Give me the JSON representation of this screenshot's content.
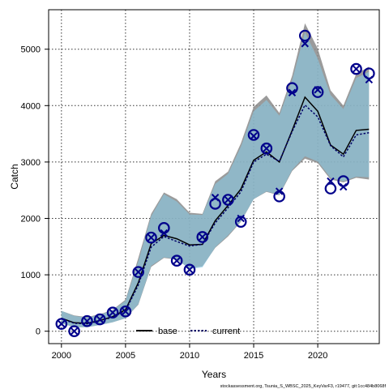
{
  "chart_data": {
    "type": "line",
    "xlabel": "Years",
    "ylabel": "Catch",
    "xlim": [
      1999,
      2024.8
    ],
    "ylim": [
      -220,
      5700
    ],
    "xticks": [
      2000,
      2005,
      2010,
      2015,
      2020
    ],
    "yticks": [
      0,
      1000,
      2000,
      3000,
      4000,
      5000
    ],
    "grid": true,
    "legend_position": "bottom-center",
    "x": [
      2000,
      2001,
      2002,
      2003,
      2004,
      2005,
      2006,
      2007,
      2008,
      2009,
      2010,
      2011,
      2012,
      2013,
      2014,
      2015,
      2016,
      2017,
      2018,
      2019,
      2020,
      2021,
      2022,
      2023,
      2024
    ],
    "observed": [
      130,
      0,
      180,
      210,
      330,
      350,
      1050,
      1660,
      1830,
      1250,
      1090,
      1670,
      2260,
      2330,
      1940,
      3480,
      3240,
      2390,
      4310,
      5240,
      4240,
      2530,
      2660,
      4650,
      4570
    ],
    "predicted": [
      130,
      0,
      180,
      210,
      330,
      350,
      1050,
      1660,
      1740,
      1250,
      1090,
      1670,
      2370,
      2330,
      2000,
      3460,
      3240,
      2480,
      4230,
      5100,
      4280,
      2660,
      2560,
      4650,
      4460
    ],
    "series": [
      {
        "name": "base",
        "color": "#000000",
        "values": [
          230,
          150,
          140,
          190,
          260,
          380,
          860,
          1550,
          1700,
          1640,
          1530,
          1540,
          1960,
          2230,
          2520,
          3030,
          3180,
          3000,
          3560,
          4150,
          3900,
          3300,
          3140,
          3560,
          3580
        ],
        "band_low": [
          140,
          70,
          70,
          110,
          160,
          230,
          470,
          1140,
          1300,
          1270,
          1110,
          1150,
          1480,
          1680,
          1940,
          2340,
          2470,
          2410,
          2840,
          3060,
          2980,
          2690,
          2640,
          2720,
          2690
        ],
        "band_high": [
          360,
          280,
          250,
          300,
          380,
          560,
          1300,
          2080,
          2460,
          2340,
          2100,
          2080,
          2660,
          2830,
          3330,
          3980,
          4180,
          3870,
          4530,
          5460,
          5010,
          4270,
          4000,
          4560,
          4690
        ],
        "band_color": "#8a8a8a"
      },
      {
        "name": "current",
        "color": "#000066",
        "values": [
          220,
          140,
          130,
          180,
          250,
          360,
          820,
          1490,
          1680,
          1590,
          1510,
          1540,
          1920,
          2190,
          2470,
          3000,
          3140,
          3010,
          3540,
          4010,
          3800,
          3290,
          3090,
          3480,
          3520
        ],
        "band_low": [
          140,
          70,
          70,
          110,
          160,
          230,
          480,
          1160,
          1310,
          1280,
          1100,
          1130,
          1490,
          1700,
          1950,
          2340,
          2480,
          2420,
          2860,
          3100,
          3010,
          2720,
          2660,
          2740,
          2730
        ],
        "band_high": [
          360,
          270,
          240,
          290,
          370,
          540,
          1240,
          2040,
          2430,
          2300,
          2070,
          2060,
          2610,
          2790,
          3270,
          3900,
          4100,
          3820,
          4450,
          5300,
          4830,
          4190,
          3940,
          4490,
          4600
        ],
        "band_color": "#87ceeb"
      }
    ],
    "observed_marker": "circle",
    "predicted_marker": "x",
    "marker_color": "#00008b",
    "footnote": "stockassessment.org, Tsunia_S_WBSC_2025_KeyVarF3, r19477, git:1cc484b8068f"
  }
}
